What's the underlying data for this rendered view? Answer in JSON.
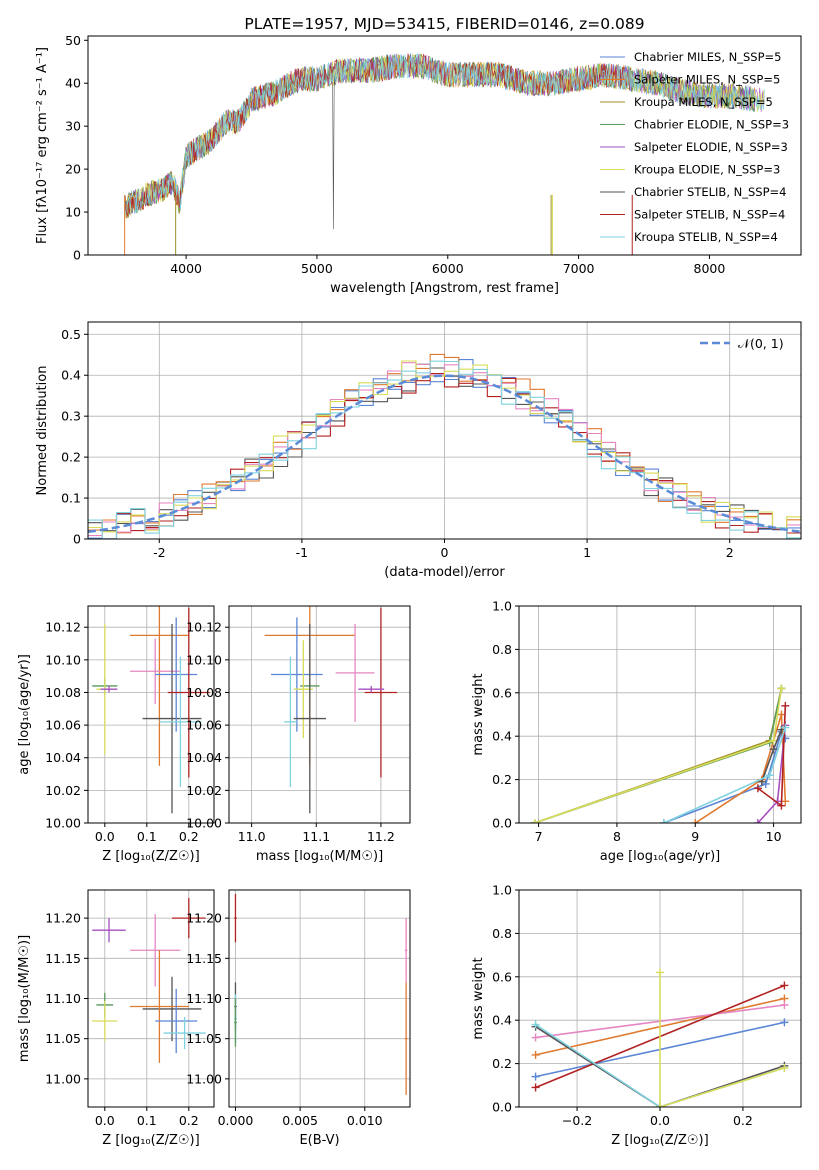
{
  "colors": {
    "chabMiles": "#5b86d6",
    "salpMiles": "#e07a2f",
    "kroupaMiles": "#a0902a",
    "chabElodie": "#5a9a5a",
    "salpElodie": "#a64fc0",
    "kroupaElodie": "#d9dc5a",
    "chabStelib": "#555555",
    "salpStelib": "#b22222",
    "kroupaStelib": "#7fd2e0",
    "pink": "#e586c2",
    "lime": "#d4e157",
    "normal": "#5b8bd6"
  },
  "chart_data": [
    {
      "id": "spectrum",
      "type": "line",
      "title": "PLATE=1957, MJD=53415, FIBERID=0146, z=0.089",
      "xlabel": "wavelength [Angstrom, rest frame]",
      "ylabel": "Flux [fλ10⁻¹⁷ erg cm⁻² s⁻¹ A⁻¹]",
      "xlim": [
        3250,
        8700
      ],
      "ylim": [
        0,
        51
      ],
      "xticks": [
        4000,
        5000,
        6000,
        7000,
        8000
      ],
      "yticks": [
        0,
        10,
        20,
        30,
        40,
        50
      ],
      "legend_position": "top-right",
      "legend": [
        {
          "label": "Chabrier MILES, N_SSP=5",
          "color": "chabMiles"
        },
        {
          "label": "Salpeter MILES, N_SSP=5",
          "color": "salpMiles"
        },
        {
          "label": "Kroupa MILES, N_SSP=5",
          "color": "kroupaMiles"
        },
        {
          "label": "Chabrier ELODIE, N_SSP=3",
          "color": "chabElodie"
        },
        {
          "label": "Salpeter ELODIE, N_SSP=3",
          "color": "salpElodie"
        },
        {
          "label": "Kroupa ELODIE, N_SSP=3",
          "color": "kroupaElodie"
        },
        {
          "label": "Chabrier STELIB, N_SSP=4",
          "color": "chabStelib"
        },
        {
          "label": "Salpeter STELIB, N_SSP=4",
          "color": "salpStelib"
        },
        {
          "label": "Kroupa STELIB, N_SSP=4",
          "color": "kroupaStelib"
        }
      ],
      "continuum": {
        "wavelength": [
          3530,
          3700,
          3800,
          3900,
          3950,
          4000,
          4100,
          4200,
          4300,
          4400,
          4500,
          4600,
          4700,
          4800,
          4900,
          5000,
          5200,
          5400,
          5600,
          5800,
          6000,
          6200,
          6400,
          6600,
          6800,
          7000,
          7200,
          7400,
          7600,
          7800,
          8000,
          8200,
          8400
        ],
        "flux": [
          11,
          14,
          15,
          17,
          12,
          23,
          25,
          27,
          31,
          31,
          36,
          37,
          38,
          40,
          41,
          41,
          43,
          43,
          44,
          44,
          42,
          42,
          42,
          40,
          40,
          41,
          42,
          41,
          40,
          38,
          37,
          37,
          36
        ]
      }
    },
    {
      "id": "residuals",
      "type": "histogram",
      "xlabel": "(data-model)/error",
      "ylabel": "Normed distribution",
      "xlim": [
        -2.5,
        2.5
      ],
      "ylim": [
        0,
        0.53
      ],
      "xticks": [
        -2,
        -1,
        0,
        1,
        2
      ],
      "yticks": [
        0.0,
        0.1,
        0.2,
        0.3,
        0.4,
        0.5
      ],
      "legend_position": "top-right",
      "legend": [
        {
          "label": "𝒩(0, 1)",
          "color": "normal",
          "dashed": true
        }
      ],
      "bin_width": 0.1,
      "series": [
        {
          "name": "Chabrier MILES",
          "color": "chabMiles",
          "peak": 0.41
        },
        {
          "name": "Salpeter MILES",
          "color": "salpMiles",
          "peak": 0.42
        },
        {
          "name": "Chabrier STELIB",
          "color": "chabStelib",
          "peak": 0.4
        },
        {
          "name": "Salpeter STELIB",
          "color": "salpStelib",
          "peak": 0.4
        },
        {
          "name": "Salpeter ELODIE",
          "color": "pink",
          "peak": 0.41
        },
        {
          "name": "Kroupa ELODIE",
          "color": "kroupaElodie",
          "peak": 0.42
        },
        {
          "name": "Kroupa STELIB",
          "color": "kroupaStelib",
          "peak": 0.4
        }
      ]
    },
    {
      "id": "age_vs_Z",
      "type": "errorbar",
      "xlabel": "Z [log₁₀(Z/Z☉)]",
      "ylabel": "age  [log₁₀(age/yr)]",
      "xlim": [
        -0.04,
        0.26
      ],
      "ylim": [
        10.0,
        10.133
      ],
      "xticks": [
        "0.0",
        "0.1",
        "0.2"
      ],
      "yticks": [
        "10.00",
        "10.02",
        "10.04",
        "10.06",
        "10.08",
        "10.10",
        "10.12"
      ],
      "points": [
        {
          "x": 0.0,
          "y": 10.084,
          "ex": 0.03,
          "ey": 0.005,
          "color": "chabElodie"
        },
        {
          "x": 0.0,
          "y": 10.082,
          "ex": 0.02,
          "ey": 0.04,
          "color": "kroupaElodie"
        },
        {
          "x": 0.01,
          "y": 10.082,
          "ex": 0.02,
          "ey": 0.002,
          "color": "salpElodie"
        },
        {
          "x": 0.13,
          "y": 10.115,
          "ex": 0.07,
          "ey": 0.08,
          "color": "salpMiles"
        },
        {
          "x": 0.12,
          "y": 10.093,
          "ex": 0.06,
          "ey": 0.02,
          "color": "pink"
        },
        {
          "x": 0.16,
          "y": 10.064,
          "ex": 0.07,
          "ey": 0.058,
          "color": "chabStelib"
        },
        {
          "x": 0.17,
          "y": 10.091,
          "ex": 0.05,
          "ey": 0.035,
          "color": "chabMiles"
        },
        {
          "x": 0.18,
          "y": 10.062,
          "ex": 0.05,
          "ey": 0.04,
          "color": "kroupaStelib"
        },
        {
          "x": 0.2,
          "y": 10.08,
          "ex": 0.05,
          "ey": 0.052,
          "color": "salpStelib"
        }
      ]
    },
    {
      "id": "age_vs_mass",
      "type": "errorbar",
      "xlabel": "mass [log₁₀(M/M☉)]",
      "xlim": [
        10.965,
        11.245
      ],
      "ylim": [
        10.0,
        10.133
      ],
      "xticks": [
        "11.0",
        "11.1",
        "11.2"
      ],
      "yticks": [
        "10.00",
        "10.02",
        "10.04",
        "10.06",
        "10.08",
        "10.10",
        "10.12"
      ],
      "points": [
        {
          "x": 11.09,
          "y": 10.115,
          "ex": 0.07,
          "ey": 0.08,
          "color": "salpMiles"
        },
        {
          "x": 11.07,
          "y": 10.091,
          "ex": 0.04,
          "ey": 0.035,
          "color": "chabMiles"
        },
        {
          "x": 11.16,
          "y": 10.092,
          "ex": 0.03,
          "ey": 0.03,
          "color": "pink"
        },
        {
          "x": 11.09,
          "y": 10.084,
          "ex": 0.015,
          "ey": 0.005,
          "color": "chabElodie"
        },
        {
          "x": 11.08,
          "y": 10.082,
          "ex": 0.015,
          "ey": 0.03,
          "color": "kroupaElodie"
        },
        {
          "x": 11.09,
          "y": 10.064,
          "ex": 0.025,
          "ey": 0.058,
          "color": "chabStelib"
        },
        {
          "x": 11.06,
          "y": 10.062,
          "ex": 0.01,
          "ey": 0.04,
          "color": "kroupaStelib"
        },
        {
          "x": 11.2,
          "y": 10.08,
          "ex": 0.025,
          "ey": 0.052,
          "color": "salpStelib"
        },
        {
          "x": 11.185,
          "y": 10.082,
          "ex": 0.02,
          "ey": 0.002,
          "color": "salpElodie"
        }
      ]
    },
    {
      "id": "weight_vs_age",
      "type": "line",
      "xlabel": "age  [log₁₀(age/yr)]",
      "ylabel": "mass weight",
      "xlim": [
        6.75,
        10.35
      ],
      "ylim": [
        0,
        1.0
      ],
      "xticks": [
        7,
        8,
        9,
        10
      ],
      "yticks": [
        "0.0",
        "0.2",
        "0.4",
        "0.6",
        "0.8",
        "1.0"
      ],
      "series": [
        {
          "name": "Chabrier MILES",
          "color": "chabMiles",
          "x": [
            8.6,
            9.9,
            10.1,
            10.15
          ],
          "y": [
            0.0,
            0.18,
            0.42,
            0.39
          ]
        },
        {
          "name": "Salpeter MILES",
          "color": "salpMiles",
          "x": [
            9.0,
            9.85,
            10.1,
            10.15
          ],
          "y": [
            0.0,
            0.2,
            0.5,
            0.1
          ]
        },
        {
          "name": "Kroupa MILES",
          "color": "kroupaMiles",
          "x": [
            6.95,
            9.95,
            10.1
          ],
          "y": [
            0.0,
            0.38,
            0.62
          ]
        },
        {
          "name": "Chabrier ELODIE",
          "color": "chabElodie",
          "x": [
            6.95,
            9.95,
            10.1
          ],
          "y": [
            0.0,
            0.37,
            0.62
          ]
        },
        {
          "name": "Salpeter ELODIE",
          "color": "salpElodie",
          "x": [
            9.8,
            10.05,
            10.15
          ],
          "y": [
            0.0,
            0.1,
            0.45
          ]
        },
        {
          "name": "Kroupa ELODIE",
          "color": "kroupaElodie",
          "x": [
            6.95,
            10.0,
            10.1
          ],
          "y": [
            0.0,
            0.38,
            0.62
          ]
        },
        {
          "name": "Chabrier STELIB",
          "color": "chabStelib",
          "x": [
            9.85,
            10.0,
            10.1
          ],
          "y": [
            0.19,
            0.34,
            0.43
          ]
        },
        {
          "name": "Salpeter STELIB",
          "color": "salpStelib",
          "x": [
            9.8,
            10.1,
            10.15
          ],
          "y": [
            0.16,
            0.08,
            0.54
          ]
        },
        {
          "name": "Kroupa STELIB",
          "color": "kroupaStelib",
          "x": [
            8.6,
            9.95,
            10.15
          ],
          "y": [
            0.0,
            0.22,
            0.44
          ]
        }
      ]
    },
    {
      "id": "mass_vs_Z",
      "type": "errorbar",
      "xlabel": "Z [log₁₀(Z/Z☉)]",
      "ylabel": "mass [log₁₀(M/M☉)]",
      "xlim": [
        -0.04,
        0.26
      ],
      "ylim": [
        10.965,
        11.235
      ],
      "xticks": [
        "0.0",
        "0.1",
        "0.2"
      ],
      "yticks": [
        "11.00",
        "11.05",
        "11.10",
        "11.15",
        "11.20"
      ],
      "points": [
        {
          "x": 0.01,
          "y": 11.185,
          "ex": 0.04,
          "ey": 0.015,
          "color": "salpElodie"
        },
        {
          "x": 0.2,
          "y": 11.2,
          "ex": 0.04,
          "ey": 0.025,
          "color": "salpStelib"
        },
        {
          "x": 0.12,
          "y": 11.16,
          "ex": 0.06,
          "ey": 0.045,
          "color": "pink"
        },
        {
          "x": 0.0,
          "y": 11.092,
          "ex": 0.02,
          "ey": 0.015,
          "color": "chabElodie"
        },
        {
          "x": 0.0,
          "y": 11.072,
          "ex": 0.03,
          "ey": 0.025,
          "color": "kroupaElodie"
        },
        {
          "x": 0.16,
          "y": 11.087,
          "ex": 0.07,
          "ey": 0.04,
          "color": "chabStelib"
        },
        {
          "x": 0.13,
          "y": 11.09,
          "ex": 0.07,
          "ey": 0.07,
          "color": "salpMiles"
        },
        {
          "x": 0.17,
          "y": 11.072,
          "ex": 0.05,
          "ey": 0.04,
          "color": "chabMiles"
        },
        {
          "x": 0.19,
          "y": 11.057,
          "ex": 0.05,
          "ey": 0.02,
          "color": "kroupaStelib"
        }
      ]
    },
    {
      "id": "mass_vs_EBV",
      "type": "errorbar",
      "xlabel": "E(B-V)",
      "xlim": [
        -0.0005,
        0.0135
      ],
      "ylim": [
        10.965,
        11.235
      ],
      "xticks": [
        "0.000",
        "0.005",
        "0.010"
      ],
      "yticks": [
        "11.00",
        "11.05",
        "11.10",
        "11.15",
        "11.20"
      ],
      "points": [
        {
          "x": 0.0,
          "y": 11.2,
          "ex": 0.0001,
          "ey": 0.03,
          "color": "salpStelib"
        },
        {
          "x": 0.0,
          "y": 11.09,
          "ex": 0.0001,
          "ey": 0.03,
          "color": "chabStelib"
        },
        {
          "x": 0.0,
          "y": 11.075,
          "ex": 0.0001,
          "ey": 0.03,
          "color": "kroupaStelib"
        },
        {
          "x": 0.0,
          "y": 11.07,
          "ex": 0.0001,
          "ey": 0.03,
          "color": "chabElodie"
        },
        {
          "x": 0.0132,
          "y": 11.16,
          "ex": 0.0001,
          "ey": 0.04,
          "color": "pink"
        },
        {
          "x": 0.0132,
          "y": 11.05,
          "ex": 0.0001,
          "ey": 0.07,
          "color": "salpMiles"
        }
      ]
    },
    {
      "id": "weight_vs_Z",
      "type": "line",
      "xlabel": "Z [log₁₀(Z/Z☉)]",
      "ylabel": "mass weight",
      "xlim": [
        -0.34,
        0.34
      ],
      "ylim": [
        0,
        1.0
      ],
      "xticks": [
        "−0.2",
        "0.0",
        "0.2"
      ],
      "yticks": [
        "0.0",
        "0.2",
        "0.4",
        "0.6",
        "0.8",
        "1.0"
      ],
      "series": [
        {
          "name": "Chabrier MILES",
          "color": "chabMiles",
          "x": [
            -0.3,
            0.3
          ],
          "y": [
            0.14,
            0.39
          ]
        },
        {
          "name": "Salpeter MILES",
          "color": "salpMiles",
          "x": [
            -0.3,
            0.3
          ],
          "y": [
            0.24,
            0.5
          ]
        },
        {
          "name": "Salpeter ELODIE",
          "color": "pink",
          "x": [
            -0.3,
            0.3
          ],
          "y": [
            0.32,
            0.47
          ]
        },
        {
          "name": "Salpeter STELIB",
          "color": "salpStelib",
          "x": [
            -0.3,
            0.3
          ],
          "y": [
            0.09,
            0.56
          ]
        },
        {
          "name": "Chabrier STELIB",
          "color": "chabStelib",
          "x": [
            -0.3,
            0.0,
            0.3
          ],
          "y": [
            0.37,
            0.0,
            0.19
          ]
        },
        {
          "name": "Kroupa STELIB",
          "color": "kroupaStelib",
          "x": [
            -0.3,
            0.0,
            0.3
          ],
          "y": [
            0.38,
            0.0,
            0.18
          ]
        },
        {
          "name": "Kroupa ELODIE",
          "color": "kroupaElodie",
          "x": [
            0.0,
            0.0,
            0.3
          ],
          "y": [
            0.62,
            0.0,
            0.18
          ]
        }
      ]
    }
  ]
}
